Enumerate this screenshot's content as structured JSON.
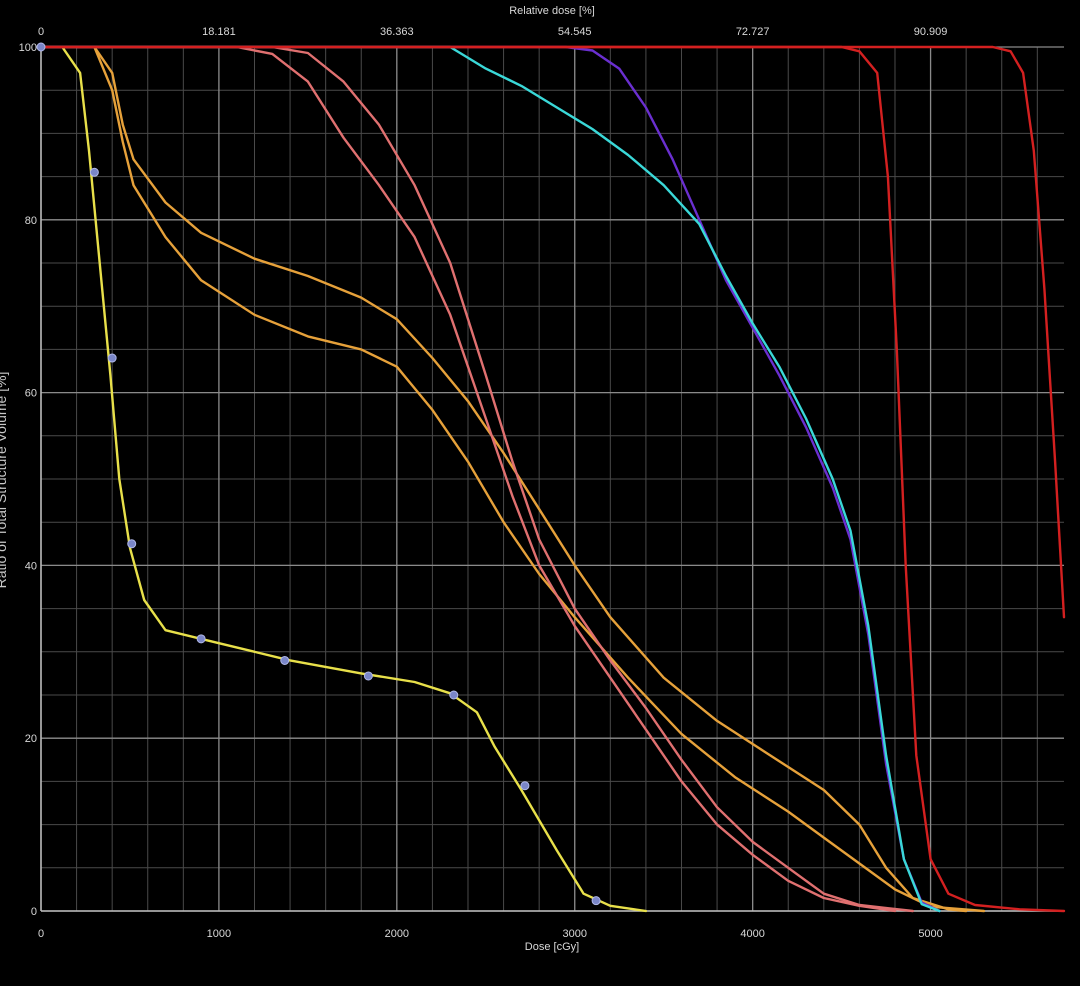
{
  "chart_data": {
    "type": "line",
    "xlabel": "Dose [cGy]",
    "x2label": "Relative dose [%]",
    "ylabel": "Ratio of Total Structure Volume [%]",
    "xlim": [
      0,
      5750
    ],
    "ylim": [
      0,
      100
    ],
    "x_ticks": [
      "0",
      "1000",
      "2000",
      "3000",
      "4000",
      "5000"
    ],
    "x2_ticks": [
      "0",
      "18.181",
      "36.363",
      "54.545",
      "72.727",
      "90.909"
    ],
    "y_ticks": [
      "0",
      "20",
      "40",
      "60",
      "80",
      "100"
    ],
    "grid": true,
    "background": "#000000",
    "grid_color": "#5a5a5a",
    "series": [
      {
        "color": "#e8e04a",
        "markers": true,
        "points": [
          [
            0,
            100
          ],
          [
            120,
            100
          ],
          [
            220,
            97
          ],
          [
            270,
            88
          ],
          [
            330,
            75
          ],
          [
            390,
            62
          ],
          [
            440,
            50
          ],
          [
            500,
            42
          ],
          [
            580,
            36
          ],
          [
            700,
            32.5
          ],
          [
            1000,
            31
          ],
          [
            1400,
            29
          ],
          [
            1800,
            27.5
          ],
          [
            2100,
            26.5
          ],
          [
            2300,
            25.2
          ],
          [
            2450,
            23
          ],
          [
            2550,
            19
          ],
          [
            2700,
            14
          ],
          [
            2900,
            7
          ],
          [
            3050,
            2
          ],
          [
            3200,
            0.6
          ],
          [
            3400,
            0
          ]
        ],
        "marker_points": [
          [
            0,
            100
          ],
          [
            300,
            85.5
          ],
          [
            400,
            64
          ],
          [
            510,
            42.5
          ],
          [
            900,
            31.5
          ],
          [
            1370,
            29
          ],
          [
            1840,
            27.2
          ],
          [
            2320,
            25
          ],
          [
            2720,
            14.5
          ],
          [
            3120,
            1.2
          ]
        ]
      },
      {
        "color": "#e6a13a",
        "points": [
          [
            0,
            100
          ],
          [
            300,
            100
          ],
          [
            400,
            97
          ],
          [
            460,
            91
          ],
          [
            520,
            87
          ],
          [
            700,
            82
          ],
          [
            900,
            78.5
          ],
          [
            1200,
            75.5
          ],
          [
            1500,
            73.5
          ],
          [
            1800,
            71
          ],
          [
            2000,
            68.5
          ],
          [
            2200,
            64
          ],
          [
            2400,
            59
          ],
          [
            2600,
            53
          ],
          [
            2800,
            46.5
          ],
          [
            3000,
            40
          ],
          [
            3200,
            34
          ],
          [
            3500,
            27
          ],
          [
            3800,
            22
          ],
          [
            4100,
            18
          ],
          [
            4400,
            14
          ],
          [
            4600,
            10
          ],
          [
            4750,
            5
          ],
          [
            4900,
            1.5
          ],
          [
            5100,
            0.2
          ],
          [
            5200,
            0
          ]
        ]
      },
      {
        "color": "#e6a13a",
        "points": [
          [
            0,
            100
          ],
          [
            300,
            100
          ],
          [
            400,
            95
          ],
          [
            460,
            89
          ],
          [
            520,
            84
          ],
          [
            700,
            78
          ],
          [
            900,
            73
          ],
          [
            1200,
            69
          ],
          [
            1500,
            66.5
          ],
          [
            1800,
            65
          ],
          [
            2000,
            63
          ],
          [
            2200,
            58
          ],
          [
            2400,
            52
          ],
          [
            2600,
            45
          ],
          [
            2800,
            39
          ],
          [
            3000,
            34
          ],
          [
            3300,
            27
          ],
          [
            3600,
            20.5
          ],
          [
            3900,
            15.5
          ],
          [
            4200,
            11.5
          ],
          [
            4400,
            8.5
          ],
          [
            4600,
            5.5
          ],
          [
            4800,
            2.5
          ],
          [
            5000,
            0.5
          ],
          [
            5300,
            0
          ]
        ]
      },
      {
        "color": "#e07070",
        "points": [
          [
            0,
            100
          ],
          [
            1100,
            100
          ],
          [
            1300,
            99.2
          ],
          [
            1500,
            96
          ],
          [
            1700,
            89.5
          ],
          [
            1900,
            84
          ],
          [
            2100,
            78
          ],
          [
            2300,
            69
          ],
          [
            2500,
            57
          ],
          [
            2650,
            48
          ],
          [
            2800,
            40
          ],
          [
            3000,
            33
          ],
          [
            3200,
            27
          ],
          [
            3400,
            21
          ],
          [
            3600,
            15
          ],
          [
            3800,
            10
          ],
          [
            4000,
            6.5
          ],
          [
            4200,
            3.5
          ],
          [
            4400,
            1.5
          ],
          [
            4600,
            0.6
          ],
          [
            4800,
            0
          ]
        ]
      },
      {
        "color": "#e07070",
        "points": [
          [
            0,
            100
          ],
          [
            1300,
            100
          ],
          [
            1500,
            99.3
          ],
          [
            1700,
            96
          ],
          [
            1900,
            91
          ],
          [
            2100,
            84
          ],
          [
            2300,
            75
          ],
          [
            2500,
            62
          ],
          [
            2650,
            52
          ],
          [
            2800,
            43
          ],
          [
            3000,
            35
          ],
          [
            3200,
            29
          ],
          [
            3400,
            23.5
          ],
          [
            3600,
            17.5
          ],
          [
            3800,
            12
          ],
          [
            4000,
            8
          ],
          [
            4200,
            5
          ],
          [
            4400,
            2
          ],
          [
            4600,
            0.7
          ],
          [
            4900,
            0
          ]
        ]
      },
      {
        "color": "#6a2fd0",
        "points": [
          [
            0,
            100
          ],
          [
            2950,
            100
          ],
          [
            3100,
            99.6
          ],
          [
            3250,
            97.5
          ],
          [
            3400,
            93
          ],
          [
            3550,
            87
          ],
          [
            3700,
            80
          ],
          [
            3850,
            73
          ],
          [
            4000,
            67.5
          ],
          [
            4150,
            62
          ],
          [
            4300,
            56
          ],
          [
            4450,
            49
          ],
          [
            4550,
            43
          ],
          [
            4650,
            32
          ],
          [
            4750,
            17
          ],
          [
            4850,
            6
          ],
          [
            4950,
            1
          ],
          [
            5050,
            0
          ]
        ]
      },
      {
        "color": "#3ad8d8",
        "points": [
          [
            0,
            100
          ],
          [
            2300,
            100
          ],
          [
            2500,
            97.5
          ],
          [
            2700,
            95.5
          ],
          [
            2900,
            93
          ],
          [
            3100,
            90.5
          ],
          [
            3300,
            87.5
          ],
          [
            3500,
            84
          ],
          [
            3700,
            79.5
          ],
          [
            3850,
            73.5
          ],
          [
            4000,
            68
          ],
          [
            4150,
            63
          ],
          [
            4300,
            57
          ],
          [
            4450,
            50
          ],
          [
            4550,
            44
          ],
          [
            4650,
            33
          ],
          [
            4750,
            18
          ],
          [
            4850,
            6
          ],
          [
            4950,
            0.8
          ],
          [
            5050,
            0
          ]
        ]
      },
      {
        "color": "#d42020",
        "points": [
          [
            0,
            100
          ],
          [
            4500,
            100
          ],
          [
            4600,
            99.5
          ],
          [
            4700,
            97
          ],
          [
            4760,
            85
          ],
          [
            4810,
            65
          ],
          [
            4860,
            40
          ],
          [
            4920,
            18
          ],
          [
            5000,
            6
          ],
          [
            5100,
            2
          ],
          [
            5250,
            0.7
          ],
          [
            5500,
            0.2
          ],
          [
            5750,
            0
          ]
        ]
      },
      {
        "color": "#d42020",
        "points": [
          [
            0,
            100
          ],
          [
            5350,
            100
          ],
          [
            5450,
            99.5
          ],
          [
            5520,
            97
          ],
          [
            5580,
            88
          ],
          [
            5640,
            72
          ],
          [
            5700,
            52
          ],
          [
            5750,
            34
          ]
        ]
      }
    ]
  }
}
